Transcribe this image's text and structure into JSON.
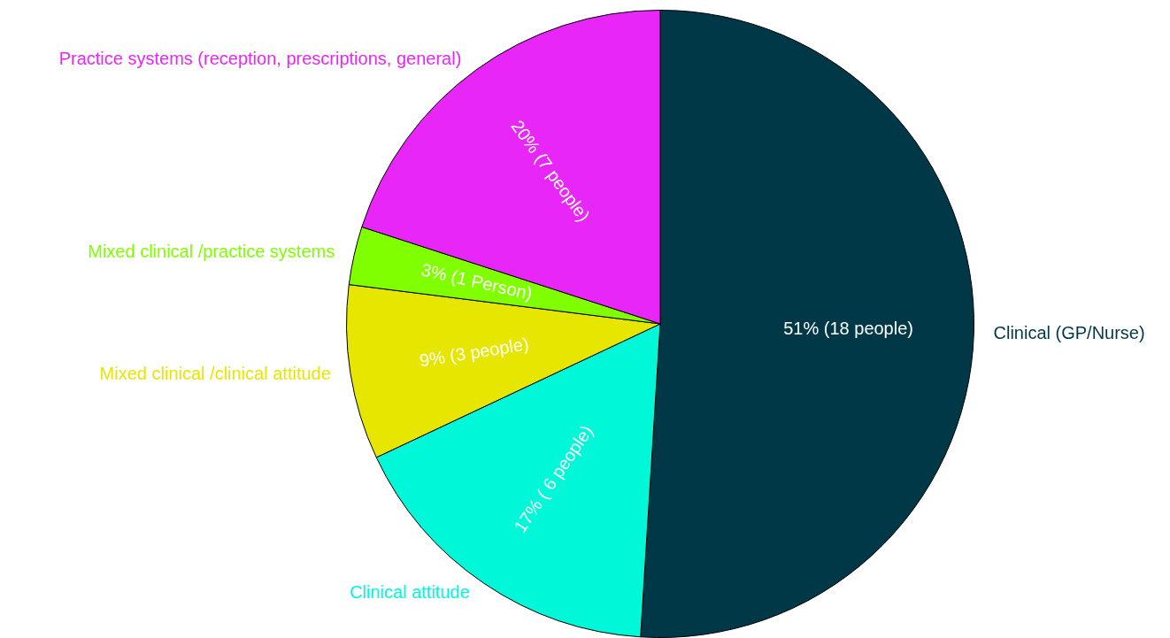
{
  "chart_data": {
    "type": "pie",
    "categories": [
      "Clinical (GP/Nurse)",
      "Clinical attitude",
      "Mixed clinical /clinical attitude",
      "Mixed clinical /practice systems",
      "Practice systems (reception, prescriptions, general)"
    ],
    "values": [
      51,
      17,
      9,
      3,
      20
    ],
    "colors": [
      "#003847",
      "#00f7d8",
      "#e6e600",
      "#80ff00",
      "#e826f8"
    ],
    "value_labels": [
      "51% (18 people)",
      "17% ( 6 people)",
      "9% (3 people)",
      "3% (1 Person)",
      "20% (7 people)"
    ],
    "legend": false
  }
}
